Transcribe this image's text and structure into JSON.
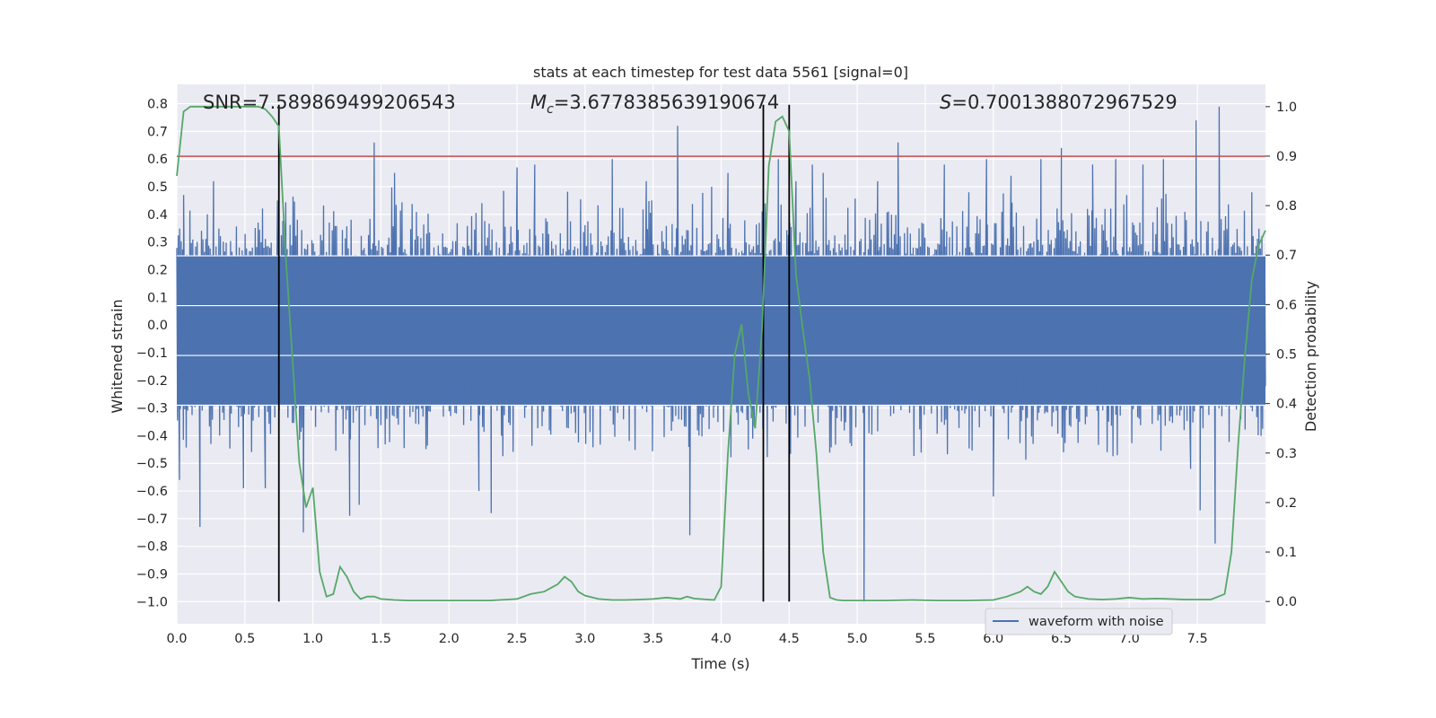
{
  "chart_data": {
    "type": "line",
    "title": "stats at each timestep for test data 5561 [signal=0]",
    "xlabel": "Time (s)",
    "ylabel_left": "Whitened strain",
    "ylabel_right": "Detection probability",
    "xlim": [
      0,
      8.0
    ],
    "ylim_left": [
      -1.08,
      0.87
    ],
    "ylim_right": [
      -0.045,
      1.045
    ],
    "x_ticks": [
      "0.0",
      "0.5",
      "1.0",
      "1.5",
      "2.0",
      "2.5",
      "3.0",
      "3.5",
      "4.0",
      "4.5",
      "5.0",
      "5.5",
      "6.0",
      "6.5",
      "7.0",
      "7.5"
    ],
    "y_ticks_left": [
      "0.8",
      "0.7",
      "0.6",
      "0.5",
      "0.4",
      "0.3",
      "0.2",
      "0.1",
      "0.0",
      "−0.1",
      "−0.2",
      "−0.3",
      "−0.4",
      "−0.5",
      "−0.6",
      "−0.7",
      "−0.8",
      "−0.9",
      "−1.0"
    ],
    "y_ticks_right": [
      "1.0",
      "0.9",
      "0.8",
      "0.7",
      "0.6",
      "0.5",
      "0.4",
      "0.3",
      "0.2",
      "0.1",
      "0.0"
    ],
    "grid": true,
    "legend_position": "lower-right",
    "annotations": {
      "snr": "SNR=7.589869499206543",
      "mc_label": "M",
      "mc_sub": "c",
      "mc_value": "=3.6778385639190674",
      "s_label": "S",
      "s_value": "=0.7001388072967529"
    },
    "series": [
      {
        "name": "waveform with noise",
        "axis": "left",
        "color": "#4c72b0",
        "envelope_typical": 0.25,
        "spikes": [
          [
            0.02,
            -0.56
          ],
          [
            0.05,
            0.47
          ],
          [
            0.17,
            -0.73
          ],
          [
            0.27,
            0.52
          ],
          [
            0.49,
            -0.59
          ],
          [
            0.65,
            -0.59
          ],
          [
            0.74,
            0.45
          ],
          [
            0.93,
            -0.75
          ],
          [
            1.27,
            -0.69
          ],
          [
            1.34,
            -0.65
          ],
          [
            1.45,
            0.66
          ],
          [
            1.6,
            0.55
          ],
          [
            2.22,
            -0.6
          ],
          [
            2.31,
            -0.68
          ],
          [
            2.5,
            0.57
          ],
          [
            2.63,
            0.58
          ],
          [
            3.2,
            0.6
          ],
          [
            3.45,
            0.52
          ],
          [
            3.68,
            0.72
          ],
          [
            3.77,
            -0.76
          ],
          [
            3.93,
            0.5
          ],
          [
            4.05,
            0.55
          ],
          [
            4.2,
            -0.45
          ],
          [
            4.42,
            0.6
          ],
          [
            4.55,
            0.52
          ],
          [
            4.67,
            0.58
          ],
          [
            4.75,
            0.55
          ],
          [
            5.05,
            -1.0
          ],
          [
            5.15,
            0.52
          ],
          [
            5.3,
            0.66
          ],
          [
            5.64,
            0.58
          ],
          [
            5.82,
            0.48
          ],
          [
            5.95,
            0.6
          ],
          [
            6.0,
            -0.62
          ],
          [
            6.13,
            0.54
          ],
          [
            6.35,
            0.6
          ],
          [
            6.5,
            0.64
          ],
          [
            6.73,
            0.58
          ],
          [
            6.9,
            0.6
          ],
          [
            7.1,
            0.58
          ],
          [
            7.25,
            0.6
          ],
          [
            7.45,
            -0.52
          ],
          [
            7.49,
            0.74
          ],
          [
            7.52,
            -0.67
          ],
          [
            7.63,
            -0.79
          ],
          [
            7.66,
            0.79
          ],
          [
            7.9,
            0.48
          ]
        ]
      },
      {
        "name": "",
        "axis": "right",
        "color": "#55a868",
        "x": [
          0.0,
          0.05,
          0.1,
          0.2,
          0.3,
          0.4,
          0.5,
          0.6,
          0.65,
          0.7,
          0.75,
          0.8,
          0.9,
          0.95,
          1.0,
          1.05,
          1.1,
          1.15,
          1.2,
          1.25,
          1.3,
          1.35,
          1.4,
          1.45,
          1.5,
          1.6,
          1.7,
          2.0,
          2.3,
          2.5,
          2.6,
          2.7,
          2.8,
          2.85,
          2.9,
          2.95,
          3.0,
          3.1,
          3.2,
          3.3,
          3.4,
          3.5,
          3.6,
          3.7,
          3.75,
          3.8,
          3.9,
          3.95,
          4.0,
          4.05,
          4.1,
          4.15,
          4.2,
          4.25,
          4.3,
          4.35,
          4.4,
          4.45,
          4.5,
          4.55,
          4.6,
          4.65,
          4.7,
          4.75,
          4.8,
          4.85,
          4.9,
          5.0,
          5.2,
          5.4,
          5.6,
          5.8,
          6.0,
          6.1,
          6.2,
          6.25,
          6.3,
          6.35,
          6.4,
          6.45,
          6.5,
          6.55,
          6.6,
          6.7,
          6.8,
          6.9,
          7.0,
          7.1,
          7.2,
          7.3,
          7.4,
          7.5,
          7.6,
          7.7,
          7.75,
          7.8,
          7.85,
          7.9,
          7.95,
          8.0
        ],
        "values": [
          0.86,
          0.99,
          1.0,
          1.0,
          1.0,
          1.0,
          1.0,
          1.0,
          0.995,
          0.98,
          0.96,
          0.7,
          0.28,
          0.19,
          0.23,
          0.06,
          0.01,
          0.015,
          0.07,
          0.05,
          0.02,
          0.005,
          0.01,
          0.01,
          0.005,
          0.003,
          0.002,
          0.002,
          0.002,
          0.005,
          0.015,
          0.02,
          0.035,
          0.05,
          0.04,
          0.02,
          0.012,
          0.005,
          0.003,
          0.003,
          0.004,
          0.005,
          0.008,
          0.005,
          0.01,
          0.006,
          0.004,
          0.003,
          0.03,
          0.3,
          0.5,
          0.56,
          0.42,
          0.35,
          0.55,
          0.88,
          0.97,
          0.98,
          0.95,
          0.66,
          0.55,
          0.45,
          0.3,
          0.1,
          0.008,
          0.003,
          0.002,
          0.002,
          0.002,
          0.003,
          0.002,
          0.002,
          0.003,
          0.01,
          0.02,
          0.03,
          0.02,
          0.015,
          0.03,
          0.06,
          0.04,
          0.02,
          0.01,
          0.005,
          0.004,
          0.005,
          0.008,
          0.005,
          0.006,
          0.005,
          0.004,
          0.004,
          0.004,
          0.015,
          0.1,
          0.32,
          0.5,
          0.65,
          0.72,
          0.75
        ]
      }
    ],
    "threshold_line": {
      "axis": "left",
      "value": 0.61,
      "color": "#c44e52"
    },
    "white_hlines_left": [
      0.25,
      0.07,
      -0.11,
      -0.29
    ],
    "vertical_markers_x": [
      0.75,
      4.31,
      4.5
    ],
    "marker_color": "#000000"
  }
}
